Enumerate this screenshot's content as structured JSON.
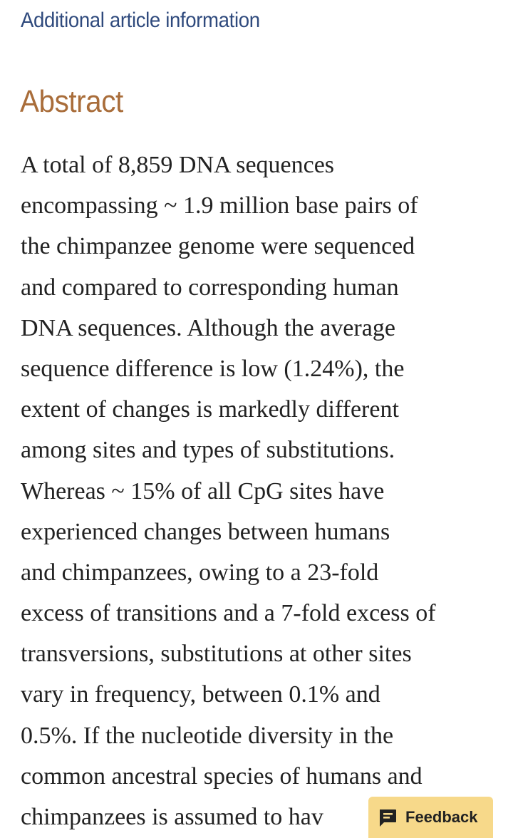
{
  "header": {
    "article_info_link": "Additional article information"
  },
  "abstract": {
    "heading": "Abstract",
    "lines": [
      "A total of 8,859 DNA sequences",
      "encompassing  ~ 1.9 million base pairs of",
      "the chimpanzee genome were sequenced",
      "and compared to corresponding human",
      "DNA sequences. Although the average",
      "sequence difference is low (1.24%), the",
      "extent of changes is markedly different",
      "among sites and types of substitutions.",
      "Whereas  ~ 15% of all CpG sites have",
      "experienced changes between humans",
      "and chimpanzees, owing to a 23-fold",
      "excess of transitions and a 7-fold excess of",
      "transversions, substitutions at other sites",
      "vary in frequency, between 0.1% and",
      "0.5%. If the nucleotide diversity in the",
      "common ancestral species of humans and",
      "chimpanzees is assumed to hav"
    ]
  },
  "feedback": {
    "label": "Feedback",
    "icon": "feedback-icon"
  },
  "colors": {
    "link": "#2f4a7d",
    "heading": "#a96d3a",
    "body_text": "#222222",
    "feedback_bg": "#f7d98a"
  }
}
